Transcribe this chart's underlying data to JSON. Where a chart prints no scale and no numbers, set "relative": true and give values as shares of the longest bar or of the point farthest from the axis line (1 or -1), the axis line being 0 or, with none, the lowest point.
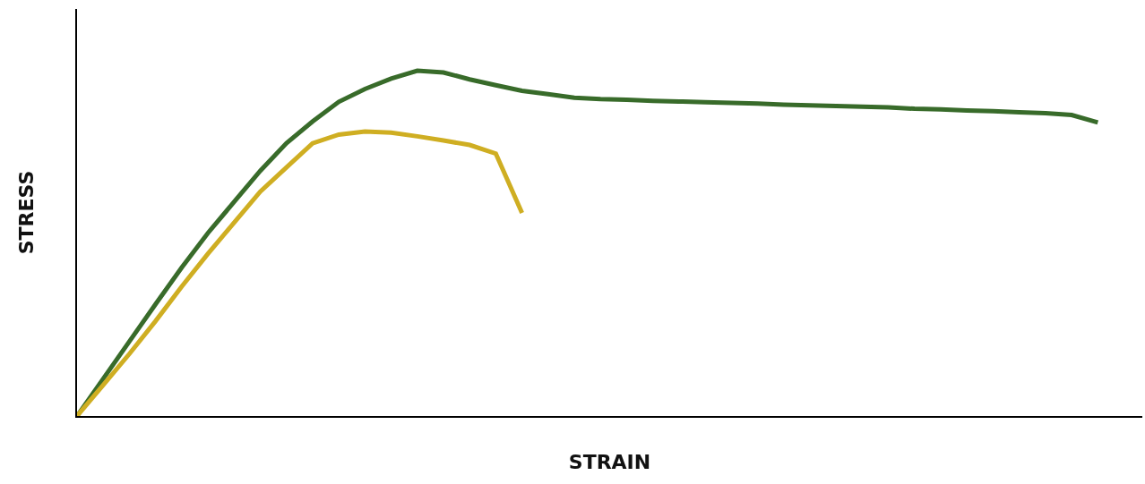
{
  "chart_data": {
    "type": "line",
    "relative": true,
    "xlabel": "STRAIN",
    "ylabel": "STRESS",
    "marker": "none",
    "line_style": "solid",
    "categories": [
      null,
      null,
      null,
      null,
      null,
      null,
      null,
      null,
      null,
      null,
      null,
      null,
      null,
      null,
      null,
      null,
      null,
      null,
      null,
      null,
      null,
      null,
      null,
      null,
      null,
      null,
      null,
      null,
      null,
      null,
      null,
      null,
      null,
      null,
      null,
      null,
      null,
      null,
      null,
      null
    ],
    "series": [
      {
        "color": "#386b2a",
        "values": [
          0,
          0.108,
          0.216,
          0.324,
          0.43,
          0.53,
          0.62,
          0.71,
          0.79,
          0.853,
          0.91,
          0.947,
          0.977,
          1,
          0.995,
          0.975,
          0.958,
          0.942,
          0.932,
          0.922,
          0.918,
          0.916,
          0.913,
          0.911,
          0.909,
          0.907,
          0.905,
          0.902,
          0.9,
          0.898,
          0.896,
          0.894,
          0.89,
          0.888,
          0.885,
          0.883,
          0.88,
          0.877,
          0.872,
          0.85
        ]
      },
      {
        "color": "#cfae22",
        "values": [
          0,
          0.09,
          0.18,
          0.275,
          0.375,
          0.47,
          0.56,
          0.65,
          0.72,
          0.79,
          0.815,
          0.824,
          0.821,
          0.81,
          0.798,
          0.785,
          0.76,
          0.588,
          null,
          null,
          null,
          null,
          null,
          null,
          null,
          null,
          null,
          null,
          null,
          null,
          null,
          null,
          null,
          null,
          null,
          null,
          null,
          null,
          null,
          null
        ]
      }
    ]
  }
}
